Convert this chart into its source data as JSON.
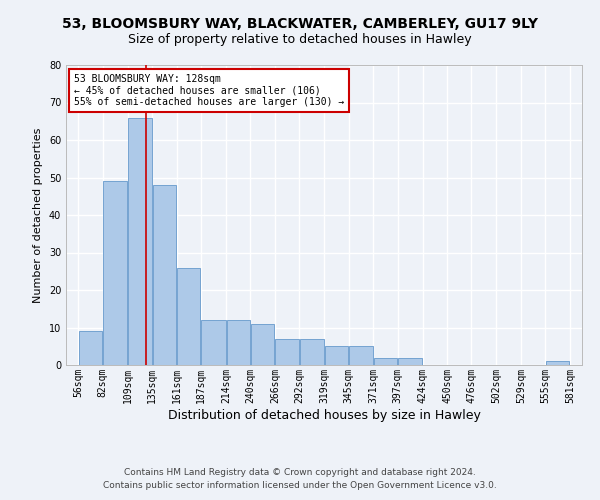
{
  "title1": "53, BLOOMSBURY WAY, BLACKWATER, CAMBERLEY, GU17 9LY",
  "title2": "Size of property relative to detached houses in Hawley",
  "xlabel": "Distribution of detached houses by size in Hawley",
  "ylabel": "Number of detached properties",
  "bar_values": [
    9,
    49,
    66,
    48,
    26,
    12,
    12,
    11,
    7,
    7,
    5,
    5,
    2,
    2,
    0,
    0,
    0,
    0,
    0,
    1
  ],
  "bin_edges": [
    56,
    82,
    109,
    135,
    161,
    187,
    214,
    240,
    266,
    292,
    319,
    345,
    371,
    397,
    424,
    450,
    476,
    502,
    529,
    555,
    581
  ],
  "tick_labels": [
    "56sqm",
    "82sqm",
    "109sqm",
    "135sqm",
    "161sqm",
    "187sqm",
    "214sqm",
    "240sqm",
    "266sqm",
    "292sqm",
    "319sqm",
    "345sqm",
    "371sqm",
    "397sqm",
    "424sqm",
    "450sqm",
    "476sqm",
    "502sqm",
    "529sqm",
    "555sqm",
    "581sqm"
  ],
  "bar_color": "#adc9e8",
  "bar_edge_color": "#6699cc",
  "ylim": [
    0,
    80
  ],
  "yticks": [
    0,
    10,
    20,
    30,
    40,
    50,
    60,
    70,
    80
  ],
  "vline_x": 128,
  "vline_color": "#cc0000",
  "annotation_line1": "53 BLOOMSBURY WAY: 128sqm",
  "annotation_line2": "← 45% of detached houses are smaller (106)",
  "annotation_line3": "55% of semi-detached houses are larger (130) →",
  "footer_line1": "Contains HM Land Registry data © Crown copyright and database right 2024.",
  "footer_line2": "Contains public sector information licensed under the Open Government Licence v3.0.",
  "background_color": "#eef2f8",
  "axes_background": "#eef2f8",
  "grid_color": "#ffffff",
  "title1_fontsize": 10,
  "title2_fontsize": 9,
  "xlabel_fontsize": 9,
  "ylabel_fontsize": 8,
  "tick_fontsize": 7,
  "annotation_fontsize": 7,
  "footer_fontsize": 6.5
}
